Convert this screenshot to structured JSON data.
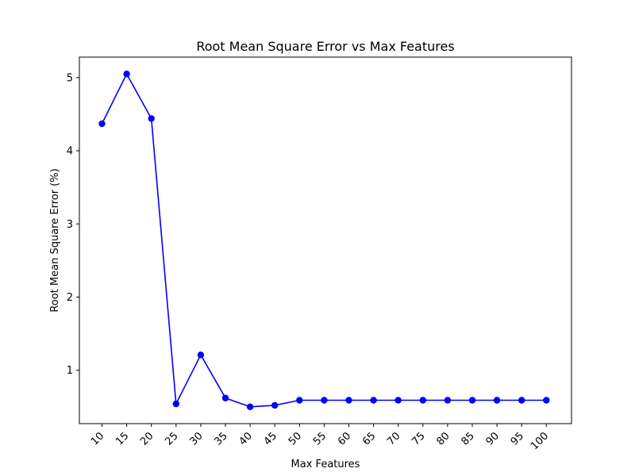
{
  "chart_data": {
    "type": "line",
    "title": "Root Mean Square Error vs Max Features",
    "xlabel": "Max Features",
    "ylabel": "Root Mean Square Error (%)",
    "categories": [
      "10",
      "15",
      "20",
      "25",
      "30",
      "35",
      "40",
      "45",
      "50",
      "55",
      "60",
      "65",
      "70",
      "75",
      "80",
      "85",
      "90",
      "95",
      "100"
    ],
    "series": [
      {
        "values": [
          4.37,
          5.05,
          4.44,
          0.54,
          1.21,
          0.62,
          0.5,
          0.52,
          0.59,
          0.59,
          0.59,
          0.59,
          0.59,
          0.59,
          0.59,
          0.59,
          0.59,
          0.59,
          0.59
        ],
        "color": "#0000ff",
        "marker": "circle"
      }
    ],
    "yticks": [
      1,
      2,
      3,
      4,
      5
    ],
    "ylim": [
      0.27,
      5.28
    ],
    "grid": false,
    "x_tick_rotation": 45
  }
}
